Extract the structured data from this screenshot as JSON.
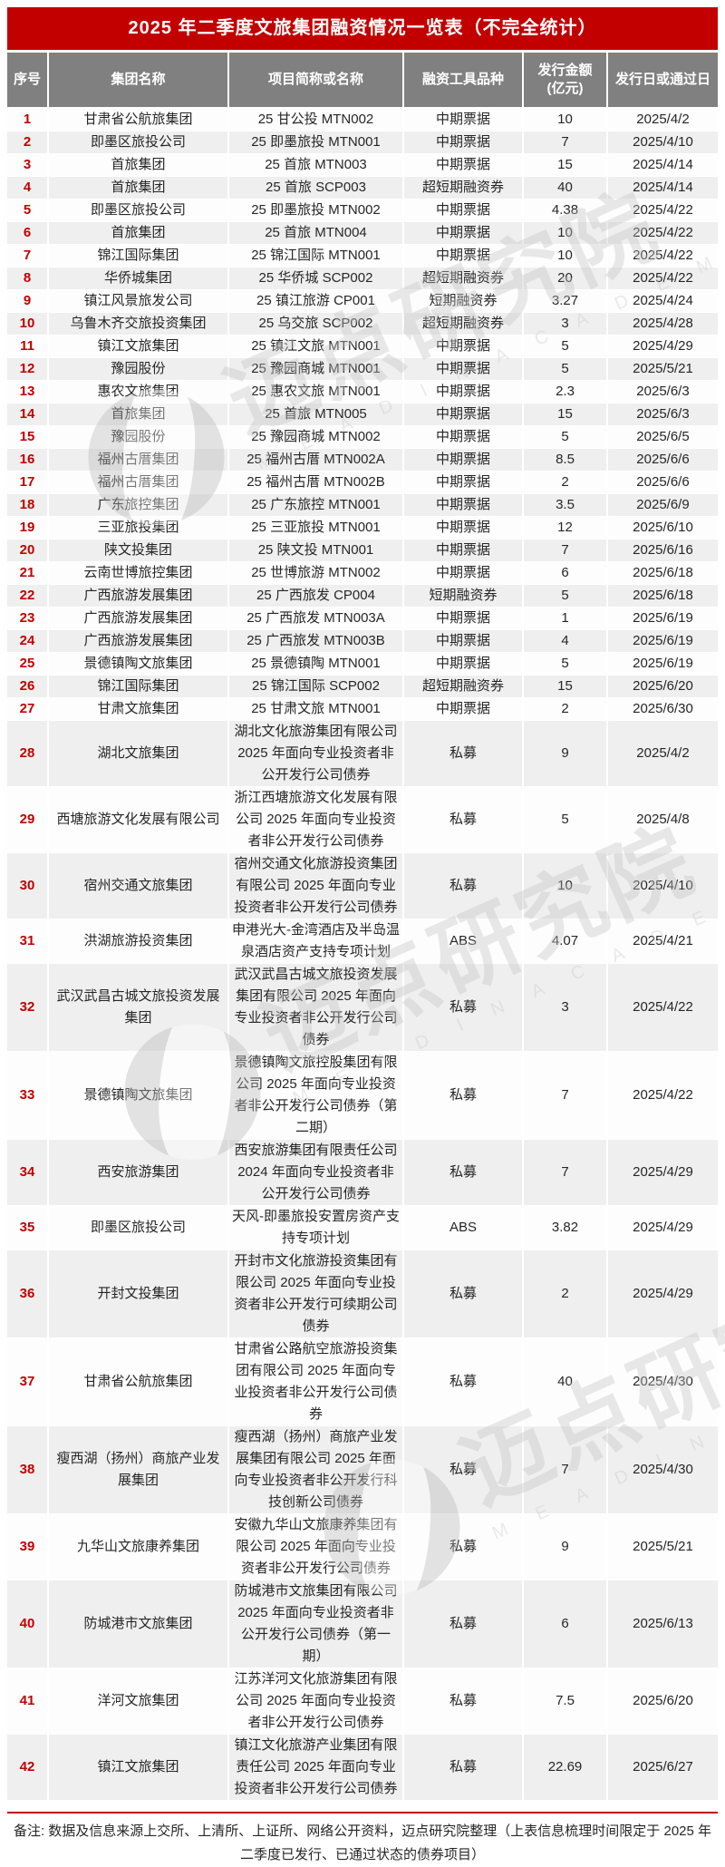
{
  "title": "2025 年二季度文旅集团融资情况一览表（不完全统计）",
  "colors": {
    "title_bg": "#C20000",
    "header_bg": "#808080",
    "row_alt_bg": "#EFEFEF",
    "index_number_color": "#C20000",
    "divider_red": "#C20000"
  },
  "watermark": {
    "cn": "迈点研究院",
    "en": "M E A D I N   A C A D E M Y"
  },
  "table": {
    "headers": [
      "序号",
      "集团名称",
      "项目简称或名称",
      "融资工具品种",
      "发行金额\n(亿元)",
      "发行日或通过日"
    ],
    "rows": [
      {
        "n": "1",
        "group": "甘肃省公航旅集团",
        "project": "25 甘公投 MTN002",
        "tool": "中期票据",
        "amount": "10",
        "date": "2025/4/2"
      },
      {
        "n": "2",
        "group": "即墨区旅投公司",
        "project": "25 即墨旅投 MTN001",
        "tool": "中期票据",
        "amount": "7",
        "date": "2025/4/10"
      },
      {
        "n": "3",
        "group": "首旅集团",
        "project": "25 首旅 MTN003",
        "tool": "中期票据",
        "amount": "15",
        "date": "2025/4/14"
      },
      {
        "n": "4",
        "group": "首旅集团",
        "project": "25 首旅 SCP003",
        "tool": "超短期融资券",
        "amount": "40",
        "date": "2025/4/14"
      },
      {
        "n": "5",
        "group": "即墨区旅投公司",
        "project": "25 即墨旅投 MTN002",
        "tool": "中期票据",
        "amount": "4.38",
        "date": "2025/4/22"
      },
      {
        "n": "6",
        "group": "首旅集团",
        "project": "25 首旅 MTN004",
        "tool": "中期票据",
        "amount": "10",
        "date": "2025/4/22"
      },
      {
        "n": "7",
        "group": "锦江国际集团",
        "project": "25 锦江国际 MTN001",
        "tool": "中期票据",
        "amount": "10",
        "date": "2025/4/22"
      },
      {
        "n": "8",
        "group": "华侨城集团",
        "project": "25 华侨城 SCP002",
        "tool": "超短期融资券",
        "amount": "20",
        "date": "2025/4/22"
      },
      {
        "n": "9",
        "group": "镇江风景旅发公司",
        "project": "25 镇江旅游 CP001",
        "tool": "短期融资券",
        "amount": "3.27",
        "date": "2025/4/24"
      },
      {
        "n": "10",
        "group": "乌鲁木齐交旅投资集团",
        "project": "25 乌交旅 SCP002",
        "tool": "超短期融资券",
        "amount": "3",
        "date": "2025/4/28"
      },
      {
        "n": "11",
        "group": "镇江文旅集团",
        "project": "25 镇江文旅 MTN001",
        "tool": "中期票据",
        "amount": "5",
        "date": "2025/4/29"
      },
      {
        "n": "12",
        "group": "豫园股份",
        "project": "25 豫园商城 MTN001",
        "tool": "中期票据",
        "amount": "5",
        "date": "2025/5/21"
      },
      {
        "n": "13",
        "group": "惠农文旅集团",
        "project": "25 惠农文旅 MTN001",
        "tool": "中期票据",
        "amount": "2.3",
        "date": "2025/6/3"
      },
      {
        "n": "14",
        "group": "首旅集团",
        "project": "25 首旅 MTN005",
        "tool": "中期票据",
        "amount": "15",
        "date": "2025/6/3"
      },
      {
        "n": "15",
        "group": "豫园股份",
        "project": "25 豫园商城 MTN002",
        "tool": "中期票据",
        "amount": "5",
        "date": "2025/6/5"
      },
      {
        "n": "16",
        "group": "福州古厝集团",
        "project": "25 福州古厝 MTN002A",
        "tool": "中期票据",
        "amount": "8.5",
        "date": "2025/6/6"
      },
      {
        "n": "17",
        "group": "福州古厝集团",
        "project": "25 福州古厝 MTN002B",
        "tool": "中期票据",
        "amount": "2",
        "date": "2025/6/6"
      },
      {
        "n": "18",
        "group": "广东旅控集团",
        "project": "25 广东旅控 MTN001",
        "tool": "中期票据",
        "amount": "3.5",
        "date": "2025/6/9"
      },
      {
        "n": "19",
        "group": "三亚旅投集团",
        "project": "25 三亚旅投 MTN001",
        "tool": "中期票据",
        "amount": "12",
        "date": "2025/6/10"
      },
      {
        "n": "20",
        "group": "陕文投集团",
        "project": "25 陕文投 MTN001",
        "tool": "中期票据",
        "amount": "7",
        "date": "2025/6/16"
      },
      {
        "n": "21",
        "group": "云南世博旅控集团",
        "project": "25 世博旅游 MTN002",
        "tool": "中期票据",
        "amount": "6",
        "date": "2025/6/18"
      },
      {
        "n": "22",
        "group": "广西旅游发展集团",
        "project": "25 广西旅发 CP004",
        "tool": "短期融资券",
        "amount": "5",
        "date": "2025/6/18"
      },
      {
        "n": "23",
        "group": "广西旅游发展集团",
        "project": "25 广西旅发 MTN003A",
        "tool": "中期票据",
        "amount": "1",
        "date": "2025/6/19"
      },
      {
        "n": "24",
        "group": "广西旅游发展集团",
        "project": "25 广西旅发 MTN003B",
        "tool": "中期票据",
        "amount": "4",
        "date": "2025/6/19"
      },
      {
        "n": "25",
        "group": "景德镇陶文旅集团",
        "project": "25 景德镇陶 MTN001",
        "tool": "中期票据",
        "amount": "5",
        "date": "2025/6/19"
      },
      {
        "n": "26",
        "group": "锦江国际集团",
        "project": "25 锦江国际 SCP002",
        "tool": "超短期融资券",
        "amount": "15",
        "date": "2025/6/20"
      },
      {
        "n": "27",
        "group": "甘肃文旅集团",
        "project": "25 甘肃文旅 MTN001",
        "tool": "中期票据",
        "amount": "2",
        "date": "2025/6/30"
      },
      {
        "n": "28",
        "group": "湖北文旅集团",
        "project": "湖北文化旅游集团有限公司 2025 年面向专业投资者非公开发行公司债券",
        "tool": "私募",
        "amount": "9",
        "date": "2025/4/2"
      },
      {
        "n": "29",
        "group": "西塘旅游文化发展有限公司",
        "project": "浙江西塘旅游文化发展有限公司 2025 年面向专业投资者非公开发行公司债券",
        "tool": "私募",
        "amount": "5",
        "date": "2025/4/8"
      },
      {
        "n": "30",
        "group": "宿州交通文旅集团",
        "project": "宿州交通文化旅游投资集团有限公司 2025 年面向专业投资者非公开发行公司债券",
        "tool": "私募",
        "amount": "10",
        "date": "2025/4/10"
      },
      {
        "n": "31",
        "group": "洪湖旅游投资集团",
        "project": "申港光大-金湾酒店及半岛温泉酒店资产支持专项计划",
        "tool": "ABS",
        "amount": "4.07",
        "date": "2025/4/21"
      },
      {
        "n": "32",
        "group": "武汉武昌古城文旅投资发展集团",
        "project": "武汉武昌古城文旅投资发展集团有限公司 2025 年面向专业投资者非公开发行公司债券",
        "tool": "私募",
        "amount": "3",
        "date": "2025/4/22"
      },
      {
        "n": "33",
        "group": "景德镇陶文旅集团",
        "project": "景德镇陶文旅控股集团有限公司 2025 年面向专业投资者非公开发行公司债券（第二期）",
        "tool": "私募",
        "amount": "7",
        "date": "2025/4/22"
      },
      {
        "n": "34",
        "group": "西安旅游集团",
        "project": "西安旅游集团有限责任公司 2024 年面向专业投资者非公开发行公司债券",
        "tool": "私募",
        "amount": "7",
        "date": "2025/4/29"
      },
      {
        "n": "35",
        "group": "即墨区旅投公司",
        "project": "天风-即墨旅投安置房资产支持专项计划",
        "tool": "ABS",
        "amount": "3.82",
        "date": "2025/4/29"
      },
      {
        "n": "36",
        "group": "开封文投集团",
        "project": "开封市文化旅游投资集团有限公司 2025 年面向专业投资者非公开发行可续期公司债券",
        "tool": "私募",
        "amount": "2",
        "date": "2025/4/29"
      },
      {
        "n": "37",
        "group": "甘肃省公航旅集团",
        "project": "甘肃省公路航空旅游投资集团有限公司 2025 年面向专业投资者非公开发行公司债券",
        "tool": "私募",
        "amount": "40",
        "date": "2025/4/30"
      },
      {
        "n": "38",
        "group": "瘦西湖（扬州）商旅产业发展集团",
        "project": "瘦西湖（扬州）商旅产业发展集团有限公司 2025 年面向专业投资者非公开发行科技创新公司债券",
        "tool": "私募",
        "amount": "7",
        "date": "2025/4/30"
      },
      {
        "n": "39",
        "group": "九华山文旅康养集团",
        "project": "安徽九华山文旅康养集团有限公司 2025 年面向专业投资者非公开发行公司债券",
        "tool": "私募",
        "amount": "9",
        "date": "2025/5/21"
      },
      {
        "n": "40",
        "group": "防城港市文旅集团",
        "project": "防城港市文旅集团有限公司 2025 年面向专业投资者非公开发行公司债券（第一期）",
        "tool": "私募",
        "amount": "6",
        "date": "2025/6/13"
      },
      {
        "n": "41",
        "group": "洋河文旅集团",
        "project": "江苏洋河文化旅游集团有限公司 2025 年面向专业投资者非公开发行公司债券",
        "tool": "私募",
        "amount": "7.5",
        "date": "2025/6/20"
      },
      {
        "n": "42",
        "group": "镇江文旅集团",
        "project": "镇江文化旅游产业集团有限责任公司 2025 年面向专业投资者非公开发行公司债券",
        "tool": "私募",
        "amount": "22.69",
        "date": "2025/6/27"
      }
    ]
  },
  "footer_note": "备注: 数据及信息来源上交所、上清所、上证所、网络公开资料，迈点研究院整理（上表信息梳理时间限定于 2025 年二季度已发行、已通过状态的债券项目）"
}
